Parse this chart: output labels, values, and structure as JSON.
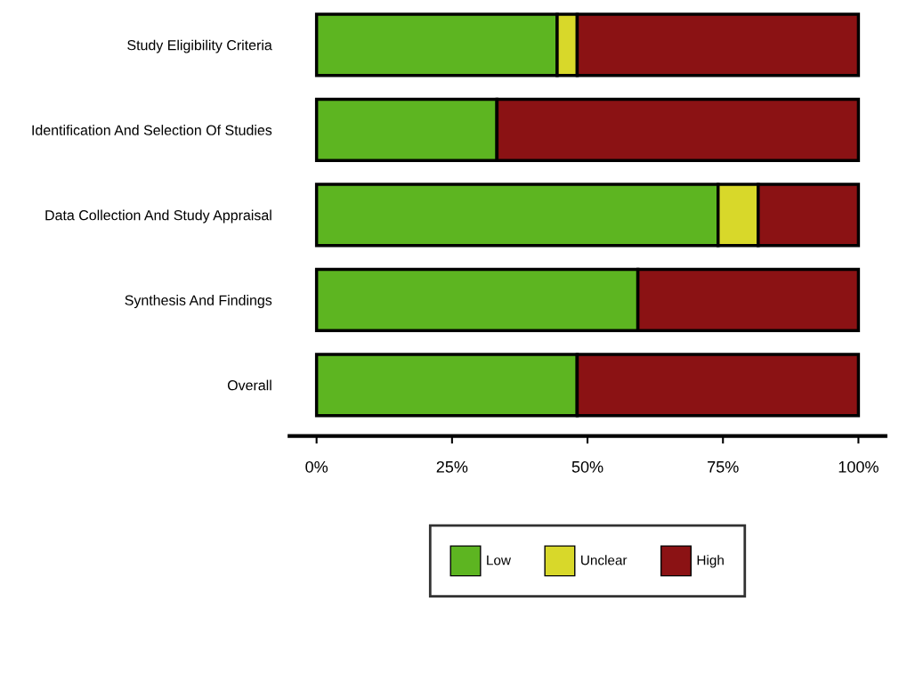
{
  "chart_data": {
    "type": "bar",
    "orientation": "horizontal",
    "stacked": true,
    "categories": [
      "Study Eligibility Criteria",
      "Identification And Selection Of Studies",
      "Data Collection And Study Appraisal",
      "Synthesis And Findings",
      "Overall"
    ],
    "series": [
      {
        "name": "Low",
        "color": "#5db521",
        "values": [
          44.4,
          33.3,
          74.1,
          59.3,
          48.1
        ]
      },
      {
        "name": "Unclear",
        "color": "#d8d82a",
        "values": [
          3.7,
          0,
          7.4,
          0,
          0
        ]
      },
      {
        "name": "High",
        "color": "#8b1214",
        "values": [
          51.9,
          66.7,
          18.5,
          40.7,
          51.9
        ]
      }
    ],
    "xlim": [
      -5,
      105
    ],
    "xticks": [
      {
        "value": 0,
        "label": "0%"
      },
      {
        "value": 25,
        "label": "25%"
      },
      {
        "value": 50,
        "label": "50%"
      },
      {
        "value": 75,
        "label": "75%"
      },
      {
        "value": 100,
        "label": "100%"
      }
    ],
    "grid": false,
    "legend": "bottom"
  }
}
